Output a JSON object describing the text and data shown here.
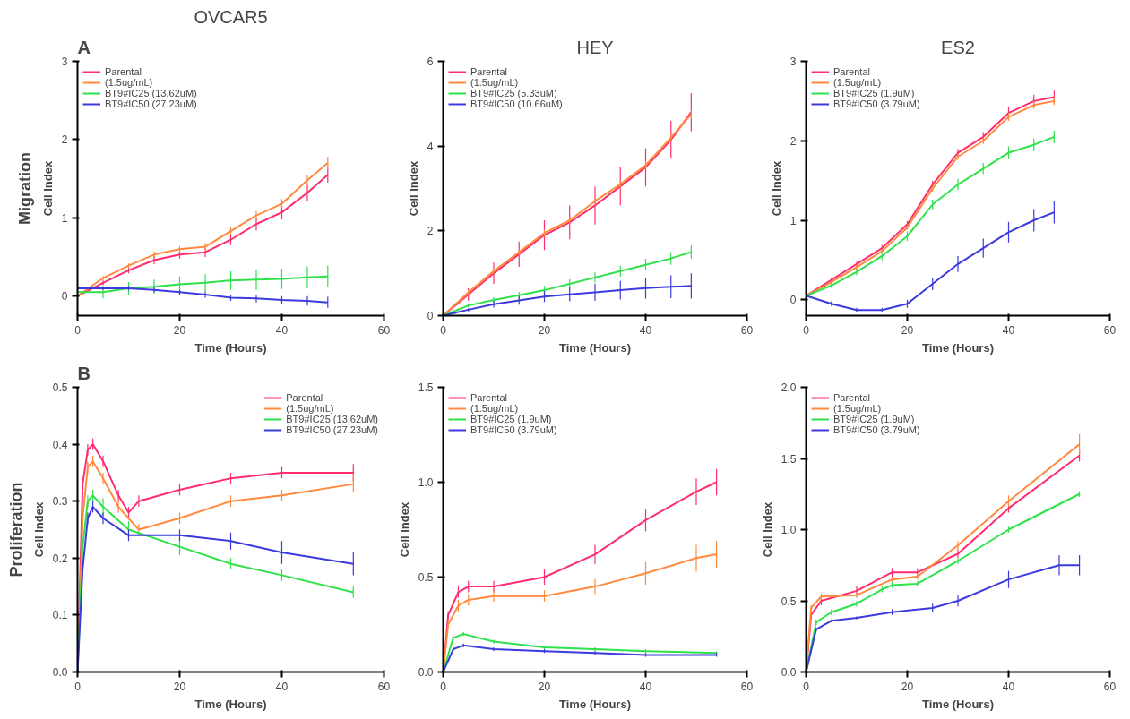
{
  "chart_data": [
    {
      "type": "line",
      "title": "OVCAR5",
      "annotations": [
        "A",
        "Migration"
      ],
      "xlabel": "Time (Hours)",
      "ylabel": "Cell Index",
      "xlim": [
        0,
        60
      ],
      "xticks": [
        0,
        20,
        40,
        60
      ],
      "ylim": [
        -0.25,
        3
      ],
      "yticks": [
        0,
        1,
        2,
        3
      ],
      "legend": "top left",
      "grid": false,
      "marker": "none",
      "line_style": "solid",
      "x": [
        0,
        5,
        10,
        15,
        20,
        25,
        30,
        35,
        40,
        45,
        49
      ],
      "series": [
        {
          "name": "Parental",
          "color": "#ff2d6b",
          "values": [
            0,
            0.17,
            0.33,
            0.46,
            0.53,
            0.56,
            0.72,
            0.92,
            1.07,
            1.32,
            1.55
          ],
          "errors": [
            null,
            0.03,
            0.04,
            0.05,
            0.05,
            0.06,
            0.07,
            0.08,
            0.09,
            0.1,
            0.1
          ]
        },
        {
          "name": "(1.5ug/mL)",
          "color": "#ff8a3d",
          "values": [
            0,
            0.23,
            0.39,
            0.53,
            0.6,
            0.63,
            0.83,
            1.03,
            1.18,
            1.48,
            1.7
          ],
          "errors": [
            null,
            0.03,
            0.03,
            0.04,
            0.04,
            0.05,
            0.05,
            0.06,
            0.06,
            0.07,
            0.08
          ]
        },
        {
          "name": "BT9#IC25 (13.62uM)",
          "color": "#2ee24a",
          "values": [
            0.05,
            0.05,
            0.1,
            0.12,
            0.15,
            0.17,
            0.2,
            0.21,
            0.22,
            0.24,
            0.25
          ],
          "errors": [
            null,
            0.08,
            0.08,
            0.09,
            0.1,
            0.11,
            0.12,
            0.13,
            0.13,
            0.14,
            0.14
          ]
        },
        {
          "name": "BT9#IC50 (27.23uM)",
          "color": "#3a3adf",
          "values": [
            0.1,
            0.1,
            0.1,
            0.08,
            0.05,
            0.02,
            -0.02,
            -0.03,
            -0.05,
            -0.06,
            -0.08
          ],
          "errors": [
            null,
            0.02,
            0.03,
            0.03,
            0.03,
            0.04,
            0.04,
            0.05,
            0.05,
            0.06,
            0.07
          ]
        }
      ]
    },
    {
      "type": "line",
      "title": "HEY",
      "xlabel": "Time (Hours)",
      "ylabel": "Cell Index",
      "xlim": [
        0,
        60
      ],
      "xticks": [
        0,
        20,
        40,
        60
      ],
      "ylim": [
        0,
        6
      ],
      "yticks": [
        0,
        2,
        4,
        6
      ],
      "legend": "top left",
      "grid": false,
      "marker": "none",
      "line_style": "solid",
      "x": [
        0,
        5,
        10,
        15,
        20,
        25,
        30,
        35,
        40,
        45,
        49
      ],
      "series": [
        {
          "name": "Parental",
          "color": "#ff2d6b",
          "values": [
            0,
            0.5,
            1.0,
            1.45,
            1.9,
            2.2,
            2.6,
            3.05,
            3.5,
            4.15,
            4.8
          ],
          "errors": [
            null,
            0.15,
            0.25,
            0.3,
            0.35,
            0.4,
            0.45,
            0.45,
            0.45,
            0.45,
            0.45
          ]
        },
        {
          "name": "(1.5ug/mL)",
          "color": "#ff8a3d",
          "values": [
            0,
            0.55,
            1.05,
            1.5,
            1.95,
            2.25,
            2.7,
            3.1,
            3.55,
            4.2,
            4.75
          ],
          "errors": [
            null,
            0.05,
            0.06,
            0.07,
            0.08,
            0.08,
            0.1,
            0.1,
            0.1,
            0.1,
            0.1
          ]
        },
        {
          "name": "BT9#IC25 (5.33uM)",
          "color": "#2ee24a",
          "values": [
            0,
            0.24,
            0.37,
            0.48,
            0.6,
            0.75,
            0.9,
            1.05,
            1.2,
            1.35,
            1.5
          ],
          "errors": [
            null,
            0.04,
            0.07,
            0.08,
            0.1,
            0.11,
            0.12,
            0.13,
            0.14,
            0.15,
            0.16
          ]
        },
        {
          "name": "BT9#IC50 (10.66uM)",
          "color": "#3a3adf",
          "values": [
            0,
            0.14,
            0.27,
            0.36,
            0.45,
            0.5,
            0.55,
            0.6,
            0.65,
            0.68,
            0.7
          ],
          "errors": [
            null,
            0.04,
            0.08,
            0.1,
            0.13,
            0.16,
            0.2,
            0.22,
            0.25,
            0.27,
            0.3
          ]
        }
      ]
    },
    {
      "type": "line",
      "title": "ES2",
      "xlabel": "Time (Hours)",
      "ylabel": "Cell Index",
      "xlim": [
        0,
        60
      ],
      "xticks": [
        0,
        20,
        40,
        60
      ],
      "ylim": [
        -0.2,
        3
      ],
      "yticks": [
        0,
        1,
        2,
        3
      ],
      "legend": "top left",
      "grid": false,
      "marker": "none",
      "line_style": "solid",
      "x": [
        0,
        5,
        10,
        15,
        20,
        25,
        30,
        35,
        40,
        45,
        49
      ],
      "series": [
        {
          "name": "Parental",
          "color": "#ff2d6b",
          "values": [
            0.05,
            0.25,
            0.45,
            0.65,
            0.95,
            1.45,
            1.85,
            2.05,
            2.35,
            2.5,
            2.55
          ],
          "errors": [
            null,
            0.03,
            0.03,
            0.04,
            0.04,
            0.05,
            0.05,
            0.06,
            0.07,
            0.08,
            0.08
          ]
        },
        {
          "name": "(1.5ug/mL)",
          "color": "#ff8a3d",
          "values": [
            0.05,
            0.22,
            0.41,
            0.61,
            0.91,
            1.4,
            1.8,
            2.0,
            2.3,
            2.45,
            2.5
          ],
          "errors": [
            null,
            0.02,
            0.03,
            0.03,
            0.03,
            0.04,
            0.04,
            0.04,
            0.05,
            0.05,
            0.05
          ]
        },
        {
          "name": "BT9#IC25 (1.9uM)",
          "color": "#2ee24a",
          "values": [
            0.05,
            0.18,
            0.35,
            0.55,
            0.8,
            1.2,
            1.45,
            1.65,
            1.85,
            1.95,
            2.05
          ],
          "errors": [
            null,
            0.03,
            0.04,
            0.05,
            0.06,
            0.06,
            0.07,
            0.07,
            0.08,
            0.08,
            0.08
          ]
        },
        {
          "name": "BT9#IC50 (3.79uM)",
          "color": "#3a3adf",
          "values": [
            0.05,
            -0.05,
            -0.13,
            -0.13,
            -0.05,
            0.2,
            0.45,
            0.65,
            0.85,
            1.0,
            1.1
          ],
          "errors": [
            null,
            0.03,
            0.03,
            0.03,
            0.05,
            0.08,
            0.1,
            0.12,
            0.13,
            0.14,
            0.14
          ]
        }
      ]
    },
    {
      "type": "line",
      "annotations": [
        "B",
        "Proliferation"
      ],
      "xlabel": "Time (Hours)",
      "ylabel": "Cell Index",
      "xlim": [
        0,
        60
      ],
      "xticks": [
        0,
        20,
        40,
        60
      ],
      "ylim": [
        0,
        0.5
      ],
      "yticks": [
        {
          "value": 0,
          "label": "0.0"
        },
        0.1,
        0.2,
        0.3,
        0.4,
        0.5
      ],
      "legend": "top right",
      "grid": false,
      "marker": "none",
      "line_style": "solid",
      "series": [
        {
          "name": "Parental",
          "color": "#ff2d6b",
          "x": [
            0,
            1,
            2,
            3,
            5,
            8,
            10,
            12,
            20,
            30,
            40,
            54
          ],
          "values": [
            0,
            0.33,
            0.39,
            0.4,
            0.37,
            0.31,
            0.28,
            0.3,
            0.32,
            0.34,
            0.35,
            0.35
          ],
          "errors": [
            null,
            0.01,
            0.01,
            0.01,
            0.01,
            0.01,
            0.01,
            0.01,
            0.01,
            0.01,
            0.01,
            0.015
          ]
        },
        {
          "name": "(1.5ug/mL)",
          "color": "#ff8a3d",
          "x": [
            0,
            1,
            2,
            3,
            5,
            8,
            12,
            20,
            30,
            40,
            54
          ],
          "values": [
            0,
            0.27,
            0.36,
            0.37,
            0.34,
            0.29,
            0.25,
            0.27,
            0.3,
            0.31,
            0.33
          ],
          "errors": [
            null,
            0.01,
            0.01,
            0.01,
            0.01,
            0.01,
            0.01,
            0.01,
            0.01,
            0.01,
            0.015
          ]
        },
        {
          "name": "BT9#IC25 (13.62uM)",
          "color": "#2ee24a",
          "x": [
            0,
            1,
            2,
            3,
            5,
            10,
            20,
            30,
            40,
            54
          ],
          "values": [
            0,
            0.22,
            0.3,
            0.31,
            0.29,
            0.25,
            0.22,
            0.19,
            0.17,
            0.14
          ],
          "errors": [
            null,
            0.01,
            0.01,
            0.01,
            0.015,
            0.015,
            0.015,
            0.01,
            0.01,
            0.01
          ]
        },
        {
          "name": "BT9#IC50 (27.23uM)",
          "color": "#3a3adf",
          "x": [
            0,
            1,
            2,
            3,
            5,
            10,
            20,
            30,
            40,
            54
          ],
          "values": [
            0,
            0.18,
            0.27,
            0.29,
            0.27,
            0.24,
            0.24,
            0.23,
            0.21,
            0.19
          ],
          "errors": [
            null,
            0.01,
            0.01,
            0.01,
            0.01,
            0.01,
            0.01,
            0.015,
            0.02,
            0.02
          ]
        }
      ]
    },
    {
      "type": "line",
      "xlabel": "Time (Hours)",
      "ylabel": "Cell Index",
      "xlim": [
        0,
        60
      ],
      "xticks": [
        0,
        20,
        40,
        60
      ],
      "ylim": [
        0,
        1.5
      ],
      "yticks": [
        {
          "value": 0,
          "label": "0.0"
        },
        0.5,
        {
          "value": 1,
          "label": "1.0"
        },
        1.5
      ],
      "legend": "top left",
      "grid": false,
      "marker": "none",
      "line_style": "solid",
      "series": [
        {
          "name": "Parental",
          "color": "#ff2d6b",
          "x": [
            0,
            1,
            3,
            5,
            10,
            20,
            30,
            40,
            50,
            54
          ],
          "values": [
            0,
            0.3,
            0.42,
            0.45,
            0.45,
            0.5,
            0.62,
            0.8,
            0.95,
            1.0
          ],
          "errors": [
            null,
            0.02,
            0.03,
            0.03,
            0.03,
            0.04,
            0.05,
            0.06,
            0.07,
            0.07
          ]
        },
        {
          "name": "(1.5ug/mL)",
          "color": "#ff8a3d",
          "x": [
            0,
            1,
            3,
            5,
            10,
            20,
            30,
            40,
            50,
            54
          ],
          "values": [
            0,
            0.25,
            0.35,
            0.38,
            0.4,
            0.4,
            0.45,
            0.52,
            0.6,
            0.62
          ],
          "errors": [
            null,
            0.02,
            0.03,
            0.03,
            0.03,
            0.03,
            0.04,
            0.06,
            0.07,
            0.07
          ]
        },
        {
          "name": "BT9#IC25 (1.9uM)",
          "color": "#2ee24a",
          "x": [
            0,
            2,
            4,
            10,
            20,
            30,
            40,
            54
          ],
          "values": [
            0,
            0.18,
            0.2,
            0.16,
            0.13,
            0.12,
            0.11,
            0.1
          ],
          "errors": [
            null,
            0.01,
            0.01,
            0.01,
            0.01,
            0.01,
            0.01,
            0.01
          ]
        },
        {
          "name": "BT9#IC50 (3.79uM)",
          "color": "#3a3adf",
          "x": [
            0,
            2,
            4,
            10,
            20,
            30,
            40,
            54
          ],
          "values": [
            0,
            0.12,
            0.14,
            0.12,
            0.11,
            0.1,
            0.09,
            0.09
          ],
          "errors": [
            null,
            0.01,
            0.01,
            0.01,
            0.01,
            0.01,
            0.01,
            0.01
          ]
        }
      ]
    },
    {
      "type": "line",
      "xlabel": "Time (Hours)",
      "ylabel": "Cell Index",
      "xlim": [
        0,
        60
      ],
      "xticks": [
        0,
        20,
        40,
        60
      ],
      "ylim": [
        0,
        2
      ],
      "yticks": [
        {
          "value": 0,
          "label": "0.0"
        },
        0.5,
        {
          "value": 1,
          "label": "1.0"
        },
        1.5,
        {
          "value": 2,
          "label": "2.0"
        }
      ],
      "legend": "top left",
      "grid": false,
      "marker": "none",
      "line_style": "solid",
      "series": [
        {
          "name": "Parental",
          "color": "#ff2d6b",
          "x": [
            0,
            1,
            3,
            10,
            17,
            22,
            30,
            40,
            54
          ],
          "values": [
            0,
            0.4,
            0.5,
            0.57,
            0.7,
            0.7,
            0.83,
            1.15,
            1.52
          ],
          "errors": [
            null,
            0.02,
            0.03,
            0.03,
            0.03,
            0.03,
            0.03,
            0.03,
            0.04
          ]
        },
        {
          "name": "(1.5ug/mL)",
          "color": "#ff8a3d",
          "x": [
            0,
            1,
            3,
            10,
            17,
            22,
            30,
            40,
            54
          ],
          "values": [
            0,
            0.45,
            0.53,
            0.54,
            0.65,
            0.67,
            0.89,
            1.2,
            1.6
          ],
          "errors": [
            null,
            0.02,
            0.02,
            0.02,
            0.02,
            0.02,
            0.03,
            0.04,
            0.07
          ]
        },
        {
          "name": "BT9#IC25 (1.9uM)",
          "color": "#2ee24a",
          "x": [
            0,
            2,
            5,
            10,
            15,
            17,
            22,
            30,
            40,
            54
          ],
          "values": [
            0,
            0.35,
            0.42,
            0.48,
            0.58,
            0.61,
            0.62,
            0.78,
            1.0,
            1.25
          ],
          "errors": [
            null,
            0.02,
            0.02,
            0.02,
            0.02,
            0.02,
            0.02,
            0.02,
            0.02,
            0.02
          ]
        },
        {
          "name": "BT9#IC50 (3.79uM)",
          "color": "#3a3adf",
          "x": [
            0,
            2,
            5,
            10,
            17,
            25,
            30,
            40,
            50,
            54
          ],
          "values": [
            0,
            0.3,
            0.36,
            0.38,
            0.42,
            0.45,
            0.5,
            0.65,
            0.75,
            0.75
          ],
          "errors": [
            null,
            0.01,
            0.01,
            0.01,
            0.02,
            0.03,
            0.04,
            0.06,
            0.07,
            0.07
          ]
        }
      ]
    }
  ]
}
